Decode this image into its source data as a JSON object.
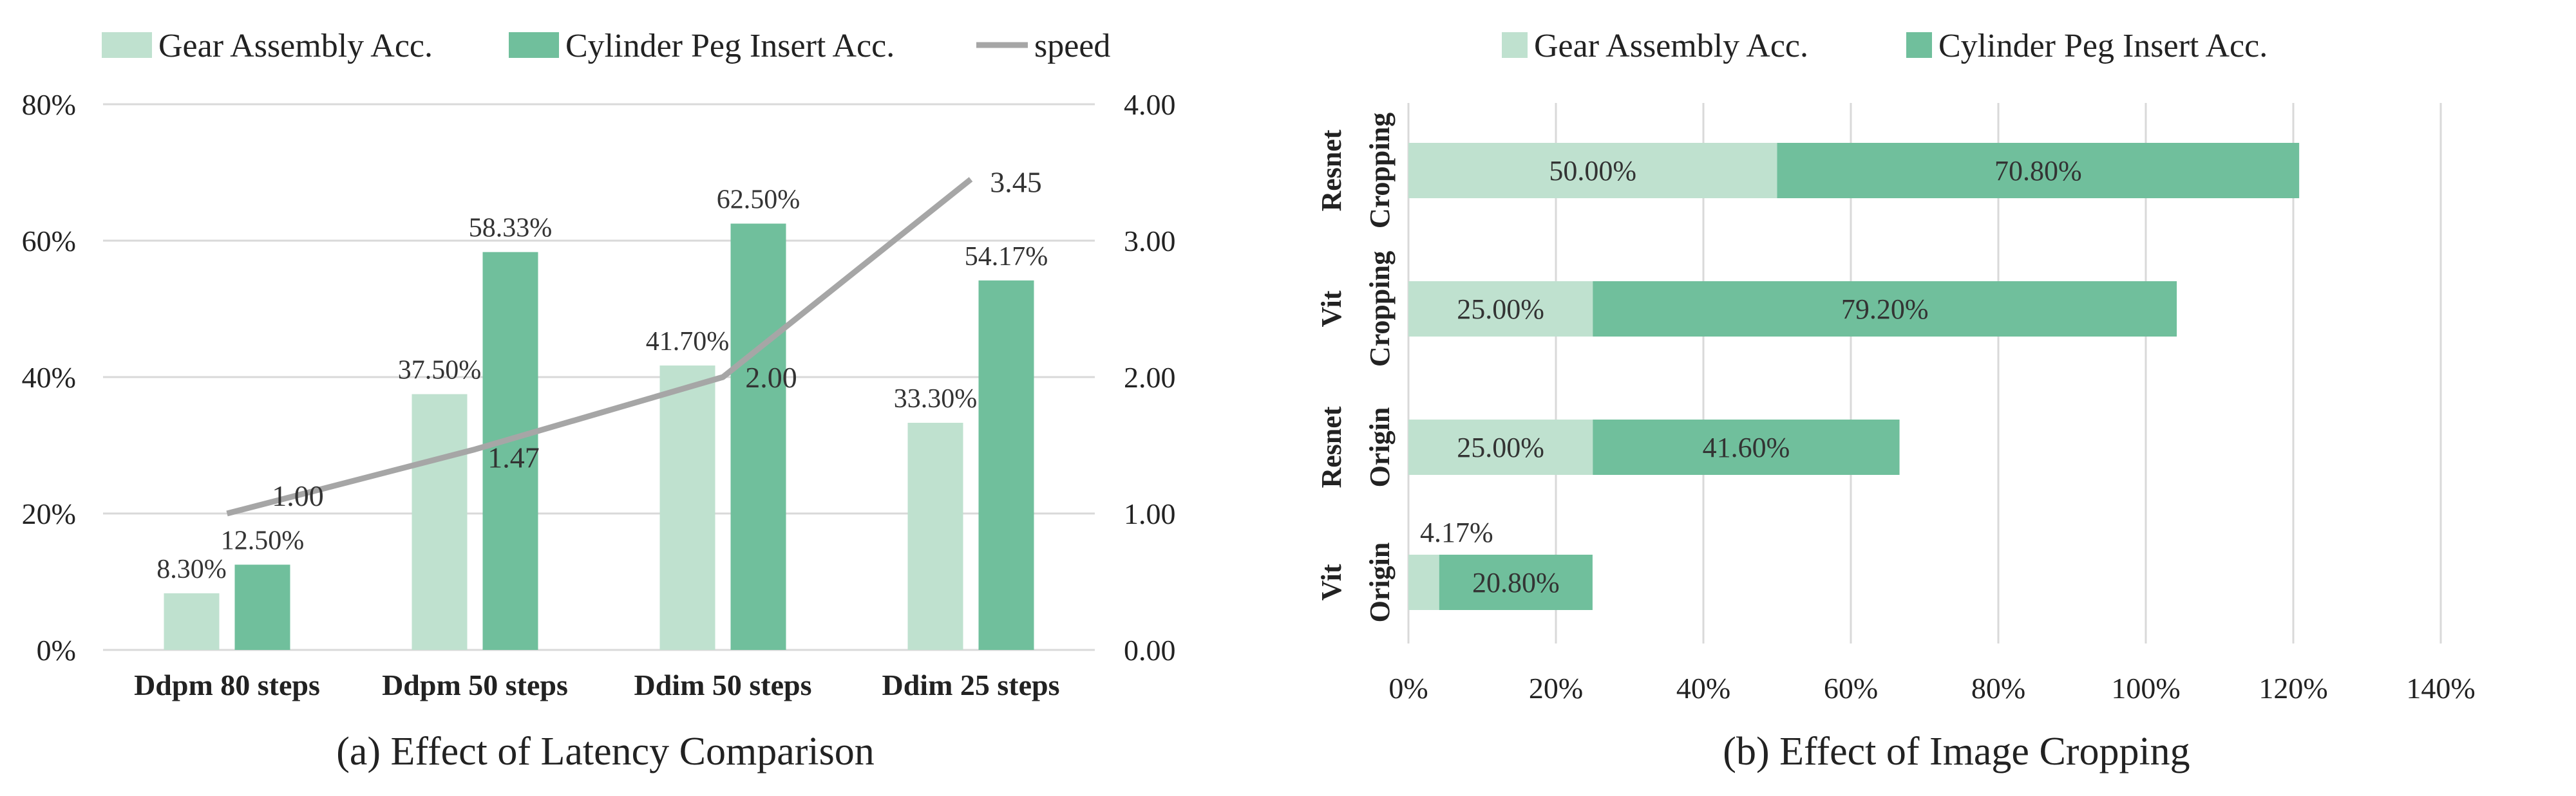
{
  "colors": {
    "gear": "#bfe1cf",
    "cyl": "#70bf9c",
    "speed": "#a6a6a6",
    "grid": "#d9d9d9",
    "text": "#222222"
  },
  "chart_data": [
    {
      "type": "bar",
      "caption": "(a) Effect of  Latency Comparison",
      "categories": [
        "Ddpm 80 steps",
        "Ddpm 50 steps",
        "Ddim 50 steps",
        "Ddim 25 steps"
      ],
      "legend": [
        "Gear Assembly Acc.",
        "Cylinder Peg Insert Acc.",
        "speed"
      ],
      "legend_position": "top",
      "series": [
        {
          "name": "Gear Assembly Acc.",
          "values": [
            8.3,
            37.5,
            41.7,
            33.3
          ],
          "labels": [
            "8.30%",
            "37.50%",
            "41.70%",
            "33.30%"
          ]
        },
        {
          "name": "Cylinder Peg Insert Acc.",
          "values": [
            12.5,
            58.33,
            62.5,
            54.17
          ],
          "labels": [
            "12.50%",
            "58.33%",
            "62.50%",
            "54.17%"
          ]
        },
        {
          "name": "speed",
          "type": "line",
          "axis": "right",
          "values": [
            1.0,
            1.47,
            2.0,
            3.45
          ],
          "labels": [
            "1.00",
            "1.47",
            "2.00",
            "3.45"
          ]
        }
      ],
      "ylim": [
        0,
        80
      ],
      "yticks": [
        "0%",
        "20%",
        "40%",
        "60%",
        "80%"
      ],
      "y2lim": [
        0,
        4
      ],
      "y2ticks": [
        "0.00",
        "1.00",
        "2.00",
        "3.00",
        "4.00"
      ],
      "grid": true
    },
    {
      "type": "bar",
      "orientation": "horizontal",
      "stacked": true,
      "caption": "(b) Effect of Image Cropping",
      "categories": [
        [
          "Resnet",
          "Cropping"
        ],
        [
          "Vit",
          "Cropping"
        ],
        [
          "Resnet",
          "Origin"
        ],
        [
          "Vit",
          "Origin"
        ]
      ],
      "legend": [
        "Gear Assembly Acc.",
        "Cylinder Peg Insert Acc."
      ],
      "legend_position": "top",
      "series": [
        {
          "name": "Gear Assembly Acc.",
          "values": [
            50.0,
            25.0,
            25.0,
            4.17
          ],
          "labels": [
            "50.00%",
            "25.00%",
            "25.00%",
            "4.17%"
          ]
        },
        {
          "name": "Cylinder Peg Insert Acc.",
          "values": [
            70.8,
            79.2,
            41.6,
            20.8
          ],
          "labels": [
            "70.80%",
            "79.20%",
            "41.60%",
            "20.80%"
          ]
        }
      ],
      "xlim": [
        0,
        140
      ],
      "xticks": [
        "0%",
        "20%",
        "40%",
        "60%",
        "80%",
        "100%",
        "120%",
        "140%"
      ],
      "grid": true
    }
  ]
}
